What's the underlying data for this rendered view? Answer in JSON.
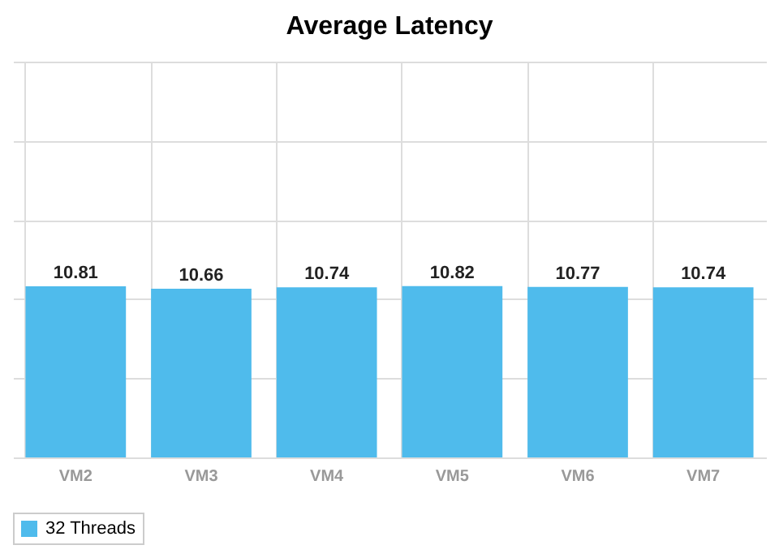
{
  "chart_data": {
    "type": "bar",
    "title": "Average Latency",
    "categories": [
      "VM2",
      "VM3",
      "VM4",
      "VM5",
      "VM6",
      "VM7"
    ],
    "series": [
      {
        "name": "32 Threads",
        "color": "#4fbbec",
        "values": [
          10.81,
          10.66,
          10.74,
          10.82,
          10.77,
          10.74
        ]
      }
    ],
    "ylim": [
      0,
      25
    ],
    "yticks": [
      {
        "value": 0,
        "label": null
      },
      {
        "value": 5,
        "label": null
      },
      {
        "value": 10,
        "label": null
      },
      {
        "value": 15,
        "label": null
      },
      {
        "value": 20,
        "label": null
      },
      {
        "value": 25,
        "label": null
      }
    ],
    "tick_labels": "x",
    "grid": true,
    "legend": "bottom",
    "data_labels": true
  }
}
